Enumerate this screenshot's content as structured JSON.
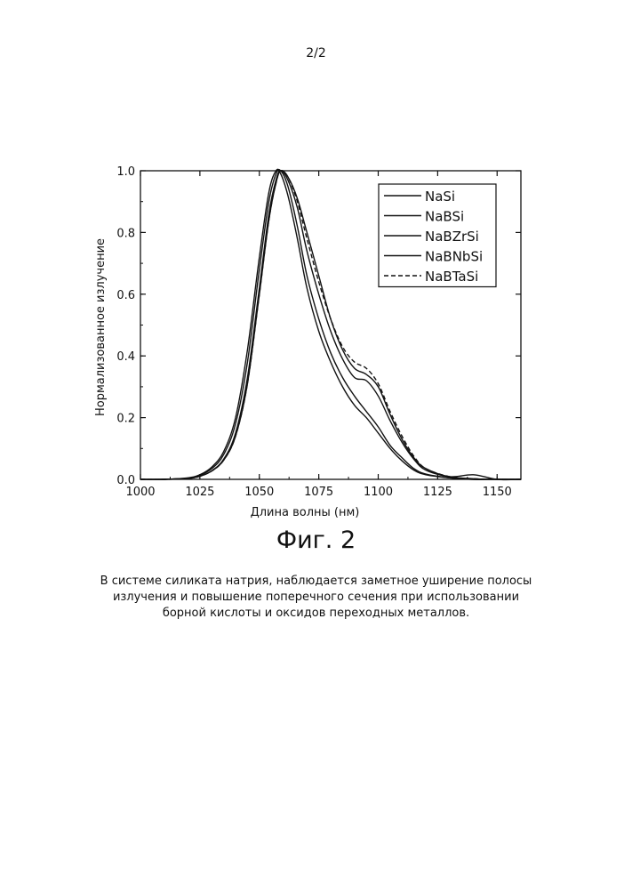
{
  "page_number": "2/2",
  "figure_caption": "Фиг. 2",
  "description": "В системе силиката натрия, наблюдается заметное уширение полосы излучения и повышение поперечного сечения при использовании борной кислоты и оксидов переходных металлов.",
  "chart_data": {
    "type": "line",
    "title": "",
    "xlabel": "Длина волны (нм)",
    "ylabel": "Нормализованное излучение",
    "xlim": [
      1000,
      1160
    ],
    "ylim": [
      0,
      1.0
    ],
    "xticks": [
      1000,
      1025,
      1050,
      1075,
      1100,
      1125,
      1150
    ],
    "yticks": [
      0.0,
      0.2,
      0.4,
      0.6,
      0.8,
      1.0
    ],
    "ytick_labels": [
      "0.0",
      "0.2",
      "0.4",
      "0.6",
      "0.8",
      "1.0"
    ],
    "legend_position": "top-right",
    "grid": false,
    "series": [
      {
        "name": "NaSi",
        "dash": "solid",
        "x": [
          1000,
          1010,
          1020,
          1025,
          1030,
          1035,
          1040,
          1045,
          1050,
          1054,
          1057,
          1059,
          1062,
          1066,
          1070,
          1075,
          1080,
          1085,
          1090,
          1095,
          1100,
          1105,
          1110,
          1115,
          1120,
          1130,
          1140,
          1150,
          1160
        ],
        "y": [
          0,
          0,
          0.005,
          0.015,
          0.04,
          0.09,
          0.2,
          0.42,
          0.72,
          0.93,
          1.0,
          0.99,
          0.92,
          0.78,
          0.62,
          0.48,
          0.38,
          0.3,
          0.24,
          0.2,
          0.15,
          0.1,
          0.06,
          0.03,
          0.015,
          0.005,
          0,
          0,
          0
        ]
      },
      {
        "name": "NaBSi",
        "dash": "solid",
        "x": [
          1000,
          1010,
          1020,
          1025,
          1030,
          1035,
          1040,
          1045,
          1050,
          1054,
          1057,
          1059,
          1062,
          1066,
          1070,
          1075,
          1080,
          1085,
          1090,
          1095,
          1100,
          1105,
          1110,
          1115,
          1120,
          1130,
          1140,
          1150,
          1160
        ],
        "y": [
          0,
          0,
          0.004,
          0.013,
          0.035,
          0.08,
          0.18,
          0.38,
          0.68,
          0.9,
          0.99,
          1.0,
          0.95,
          0.82,
          0.66,
          0.52,
          0.41,
          0.33,
          0.27,
          0.22,
          0.17,
          0.11,
          0.07,
          0.035,
          0.017,
          0.005,
          0,
          0,
          0
        ]
      },
      {
        "name": "NaBZrSi",
        "dash": "solid",
        "x": [
          1000,
          1010,
          1020,
          1025,
          1030,
          1035,
          1040,
          1045,
          1050,
          1054,
          1057,
          1059,
          1062,
          1066,
          1070,
          1075,
          1080,
          1085,
          1090,
          1095,
          1100,
          1105,
          1110,
          1115,
          1120,
          1130,
          1140,
          1150,
          1160
        ],
        "y": [
          0,
          0,
          0.003,
          0.01,
          0.028,
          0.065,
          0.15,
          0.33,
          0.62,
          0.86,
          0.97,
          1.0,
          0.97,
          0.88,
          0.74,
          0.6,
          0.48,
          0.39,
          0.33,
          0.32,
          0.27,
          0.19,
          0.12,
          0.065,
          0.03,
          0.008,
          0.002,
          0,
          0
        ]
      },
      {
        "name": "NaBNbSi",
        "dash": "solid",
        "x": [
          1000,
          1010,
          1020,
          1025,
          1030,
          1035,
          1040,
          1045,
          1050,
          1054,
          1057,
          1059,
          1062,
          1066,
          1070,
          1075,
          1080,
          1085,
          1090,
          1095,
          1100,
          1105,
          1110,
          1115,
          1120,
          1130,
          1140,
          1150,
          1160
        ],
        "y": [
          0,
          0,
          0.003,
          0.01,
          0.027,
          0.062,
          0.14,
          0.31,
          0.6,
          0.84,
          0.96,
          1.0,
          0.98,
          0.91,
          0.8,
          0.66,
          0.52,
          0.42,
          0.36,
          0.34,
          0.3,
          0.21,
          0.13,
          0.07,
          0.035,
          0.009,
          0.015,
          0,
          0
        ]
      },
      {
        "name": "NaBTaSi",
        "dash": "dashed",
        "x": [
          1000,
          1010,
          1020,
          1025,
          1030,
          1035,
          1040,
          1045,
          1050,
          1054,
          1057,
          1059,
          1062,
          1066,
          1070,
          1075,
          1080,
          1085,
          1090,
          1095,
          1100,
          1105,
          1110,
          1115,
          1120,
          1130,
          1140,
          1150,
          1160
        ],
        "y": [
          0,
          0,
          0.003,
          0.01,
          0.027,
          0.062,
          0.14,
          0.31,
          0.6,
          0.84,
          0.96,
          1.0,
          0.98,
          0.9,
          0.78,
          0.64,
          0.52,
          0.43,
          0.38,
          0.36,
          0.31,
          0.22,
          0.14,
          0.075,
          0.035,
          0.009,
          0.002,
          0,
          0
        ]
      }
    ]
  }
}
